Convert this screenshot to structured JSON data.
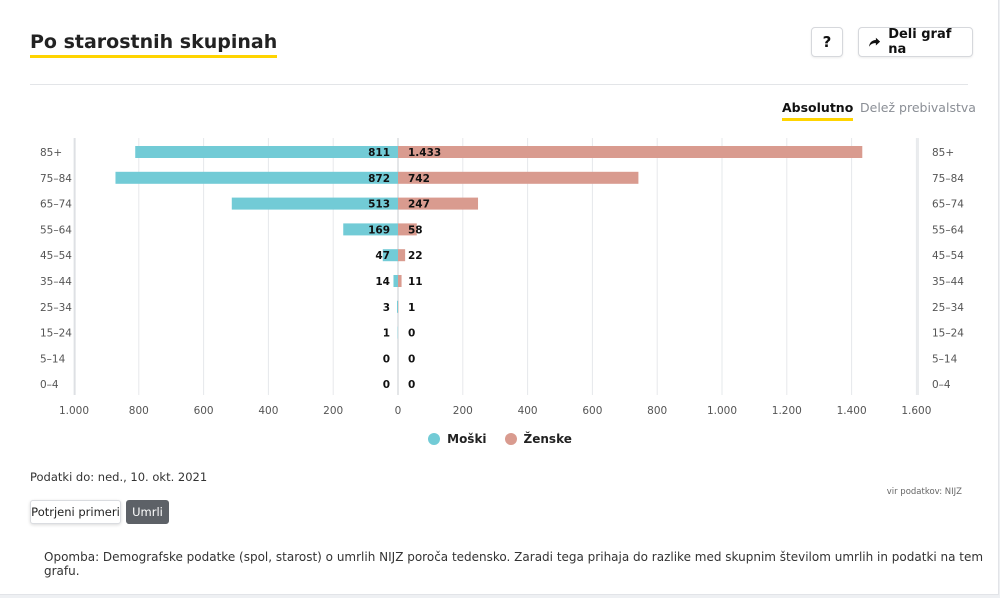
{
  "header": {
    "title": "Po starostnih skupinah",
    "help_label": "?",
    "share_label": "Deli graf na"
  },
  "modes": {
    "absolute": "Absolutno",
    "relative": "Delež prebivalstva"
  },
  "chart_data": {
    "type": "bar",
    "orientation": "horizontal-diverging",
    "categories": [
      "85+",
      "75–84",
      "65–74",
      "55–64",
      "45–54",
      "35–44",
      "25–34",
      "15–24",
      "5–14",
      "0–4"
    ],
    "series": [
      {
        "name": "Moški",
        "color": "#72cbd6",
        "values": [
          811,
          872,
          513,
          169,
          47,
          14,
          3,
          1,
          0,
          0
        ]
      },
      {
        "name": "Ženske",
        "color": "#d99b8f",
        "values": [
          1433,
          742,
          247,
          58,
          22,
          11,
          1,
          0,
          0,
          0
        ]
      }
    ],
    "x_ticks": [
      "1.000",
      "800",
      "600",
      "400",
      "200",
      "0",
      "200",
      "400",
      "600",
      "800",
      "1.000",
      "1.200",
      "1.400",
      "1.600"
    ],
    "x_left_max": 1000,
    "x_right_max": 1600,
    "grid": true,
    "legend_position": "bottom-center"
  },
  "footer": {
    "date": "Podatki do: ned., 10. okt. 2021",
    "source": "vir podatkov: NIJZ",
    "tabs": [
      "Potrjeni primeri",
      "Umrli"
    ],
    "note": "Opomba: Demografske podatke (spol, starost) o umrlih NIJZ poroča tedensko. Zaradi tega prihaja do razlike med skupnim številom umrlih in podatki na tem grafu."
  }
}
